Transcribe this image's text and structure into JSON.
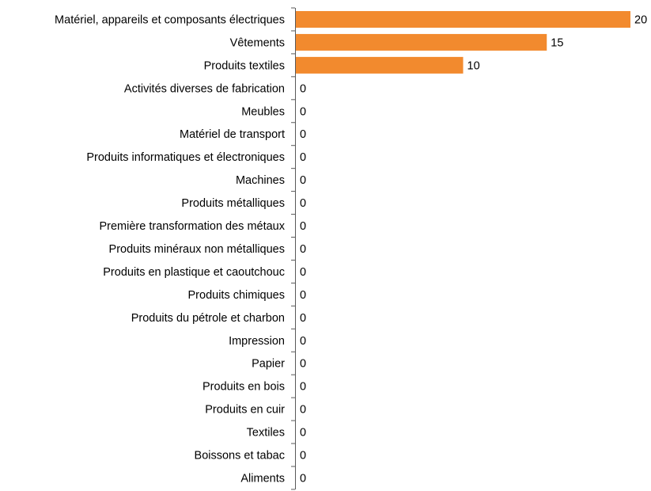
{
  "chart_data": {
    "type": "bar",
    "orientation": "horizontal",
    "title": "",
    "xlabel": "",
    "ylabel": "",
    "xlim": [
      0,
      20
    ],
    "grid": false,
    "legend": "none",
    "bar_color": "#F28A2E",
    "categories": [
      "Matériel, appareils et composants électriques",
      "Vêtements",
      "Produits textiles",
      "Activités diverses de fabrication",
      "Meubles",
      "Matériel de transport",
      "Produits informatiques et électroniques",
      "Machines",
      "Produits métalliques",
      "Première transformation des métaux",
      "Produits minéraux non métalliques",
      "Produits en plastique et caoutchouc",
      "Produits chimiques",
      "Produits du pétrole et charbon",
      "Impression",
      "Papier",
      "Produits en bois",
      "Produits en cuir",
      "Textiles",
      "Boissons et tabac",
      "Aliments"
    ],
    "values": [
      20,
      15,
      10,
      0,
      0,
      0,
      0,
      0,
      0,
      0,
      0,
      0,
      0,
      0,
      0,
      0,
      0,
      0,
      0,
      0,
      0
    ]
  }
}
